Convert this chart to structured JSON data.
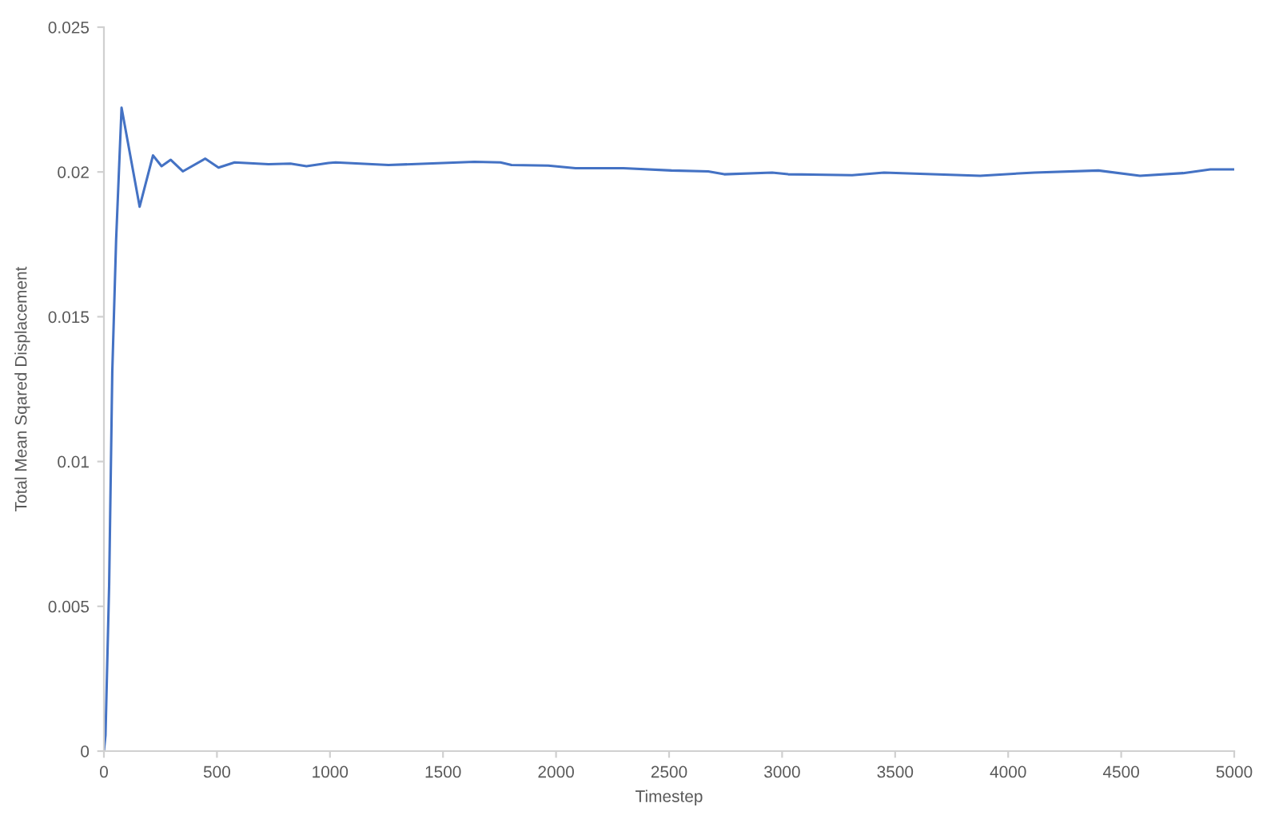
{
  "chart_data": {
    "type": "line",
    "xlabel": "Timestep",
    "ylabel": "Total Mean Sqared Displacement",
    "xlim": [
      0,
      5000
    ],
    "xticks": [
      0,
      500,
      1000,
      1500,
      2000,
      2500,
      3000,
      3500,
      4000,
      4500,
      5000
    ],
    "ylim": [
      0,
      0.025
    ],
    "yticks": [
      0,
      0.005,
      0.01,
      0.015,
      0.02,
      0.025
    ],
    "grid": false,
    "legend": false,
    "marker": "none",
    "line_style": "solid",
    "series": [
      {
        "color": "#4472c4",
        "x": [
          0,
          7,
          23,
          37,
          54,
          78,
          158,
          217,
          255,
          295,
          349,
          448,
          507,
          578,
          728,
          825,
          896,
          993,
          1025,
          1259,
          1639,
          1754,
          1803,
          1966,
          2086,
          2298,
          2511,
          2673,
          2744,
          2956,
          3027,
          3310,
          3451,
          3876,
          4116,
          4399,
          4583,
          4774,
          4894,
          5000
        ],
        "values": [
          0,
          0.00055,
          0.0057,
          0.0131,
          0.01766,
          0.02222,
          0.0188,
          0.02057,
          0.0202,
          0.02042,
          0.02002,
          0.02046,
          0.02015,
          0.02033,
          0.02027,
          0.02029,
          0.0202,
          0.02031,
          0.02033,
          0.02024,
          0.02035,
          0.02033,
          0.02024,
          0.02022,
          0.02013,
          0.02013,
          0.02005,
          0.02002,
          0.01992,
          0.01998,
          0.01992,
          0.01989,
          0.01998,
          0.01987,
          0.01998,
          0.02005,
          0.01987,
          0.01996,
          0.02009,
          0.02009
        ]
      }
    ]
  }
}
